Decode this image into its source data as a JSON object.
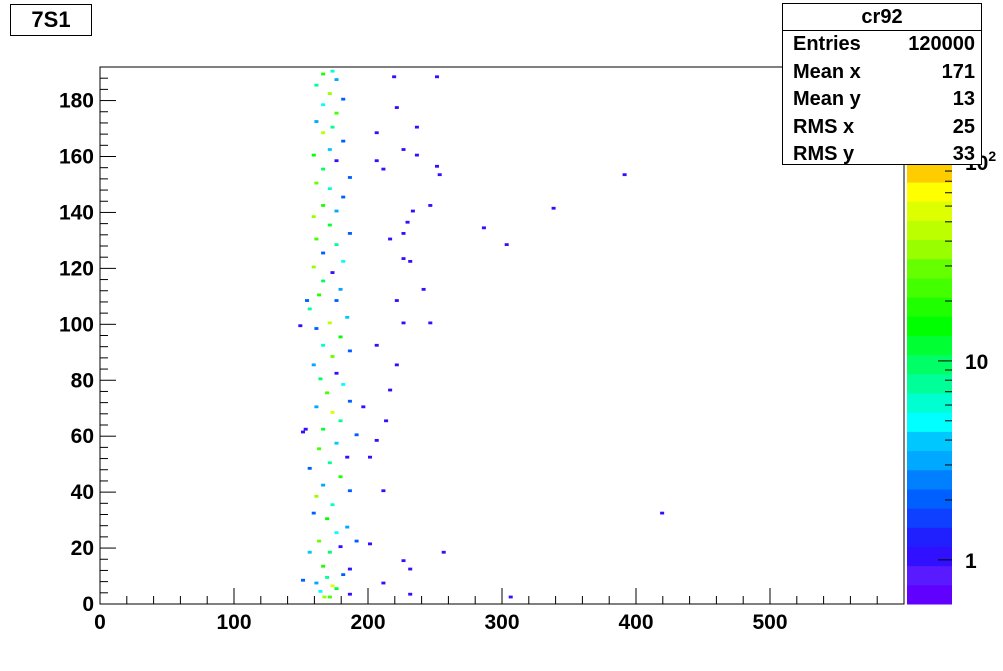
{
  "chart_data": {
    "type": "heatmap",
    "title": "7S1",
    "xlim": [
      0,
      600
    ],
    "ylim": [
      0,
      192
    ],
    "x_ticks": [
      0,
      100,
      200,
      300,
      400,
      500
    ],
    "y_ticks": [
      0,
      20,
      40,
      60,
      80,
      100,
      120,
      140,
      160,
      180
    ],
    "color_scale": "log",
    "color_range": [
      0.6,
      300
    ],
    "colorbar_ticks": [
      "1",
      "10",
      "10^2"
    ],
    "palette": [
      "#6000ff",
      "#5a1aff",
      "#3010ff",
      "#2020ff",
      "#1040ff",
      "#0060ff",
      "#0080ff",
      "#00a8ff",
      "#00c8ff",
      "#00ffff",
      "#00ffd0",
      "#00ff99",
      "#00ff66",
      "#00ff33",
      "#00ff00",
      "#20ff00",
      "#44ff00",
      "#66ff00",
      "#99ff00",
      "#bbff00",
      "#ddff00",
      "#ffff00",
      "#ffcc00",
      "#ffaa00",
      "#ff8000",
      "#ff5000",
      "#ff2800",
      "#ff0000"
    ],
    "bin_size": [
      3,
      1
    ],
    "bins": [
      [
        166,
        2,
        40
      ],
      [
        170,
        2,
        25
      ],
      [
        163,
        4,
        5
      ],
      [
        175,
        5,
        12
      ],
      [
        160,
        7,
        3
      ],
      [
        172,
        6,
        60
      ],
      [
        168,
        9,
        7
      ],
      [
        180,
        10,
        2
      ],
      [
        185,
        12,
        1
      ],
      [
        165,
        13,
        20
      ],
      [
        150,
        8,
        2
      ],
      [
        155,
        18,
        4
      ],
      [
        170,
        18,
        9
      ],
      [
        178,
        20,
        1
      ],
      [
        190,
        22,
        2
      ],
      [
        162,
        22,
        30
      ],
      [
        175,
        25,
        5
      ],
      [
        183,
        27,
        3
      ],
      [
        168,
        30,
        15
      ],
      [
        158,
        32,
        2
      ],
      [
        172,
        35,
        6
      ],
      [
        160,
        38,
        40
      ],
      [
        185,
        40,
        2
      ],
      [
        165,
        42,
        3
      ],
      [
        178,
        45,
        18
      ],
      [
        155,
        48,
        2
      ],
      [
        170,
        50,
        7
      ],
      [
        183,
        52,
        1
      ],
      [
        162,
        55,
        25
      ],
      [
        175,
        57,
        4
      ],
      [
        190,
        60,
        2
      ],
      [
        165,
        62,
        12
      ],
      [
        150,
        61,
        1
      ],
      [
        178,
        65,
        8
      ],
      [
        172,
        68,
        60
      ],
      [
        160,
        70,
        3
      ],
      [
        185,
        72,
        2
      ],
      [
        168,
        75,
        22
      ],
      [
        180,
        78,
        5
      ],
      [
        163,
        80,
        9
      ],
      [
        175,
        82,
        1
      ],
      [
        158,
        85,
        3
      ],
      [
        172,
        88,
        30
      ],
      [
        185,
        90,
        2
      ],
      [
        165,
        92,
        6
      ],
      [
        178,
        95,
        14
      ],
      [
        160,
        98,
        2
      ],
      [
        170,
        100,
        45
      ],
      [
        183,
        102,
        4
      ],
      [
        148,
        99,
        1
      ],
      [
        155,
        105,
        7
      ],
      [
        175,
        108,
        2
      ],
      [
        162,
        110,
        20
      ],
      [
        178,
        112,
        3
      ],
      [
        165,
        115,
        10
      ],
      [
        172,
        118,
        1
      ],
      [
        158,
        120,
        35
      ],
      [
        180,
        122,
        5
      ],
      [
        165,
        125,
        2
      ],
      [
        175,
        128,
        8
      ],
      [
        160,
        130,
        25
      ],
      [
        185,
        132,
        2
      ],
      [
        170,
        135,
        12
      ],
      [
        158,
        138,
        40
      ],
      [
        175,
        140,
        3
      ],
      [
        165,
        142,
        18
      ],
      [
        180,
        145,
        2
      ],
      [
        170,
        148,
        6
      ],
      [
        160,
        150,
        30
      ],
      [
        185,
        152,
        2
      ],
      [
        165,
        155,
        9
      ],
      [
        175,
        158,
        1
      ],
      [
        158,
        160,
        15
      ],
      [
        170,
        162,
        4
      ],
      [
        180,
        165,
        2
      ],
      [
        165,
        168,
        50
      ],
      [
        172,
        170,
        7
      ],
      [
        160,
        172,
        3
      ],
      [
        175,
        175,
        22
      ],
      [
        165,
        178,
        5
      ],
      [
        180,
        180,
        2
      ],
      [
        170,
        182,
        35
      ],
      [
        160,
        185,
        8
      ],
      [
        175,
        187,
        3
      ],
      [
        165,
        189,
        20
      ],
      [
        172,
        190,
        6
      ],
      [
        152,
        62,
        1
      ],
      [
        153,
        108,
        2
      ],
      [
        185,
        3,
        1
      ],
      [
        230,
        3,
        1
      ],
      [
        305,
        2,
        1
      ],
      [
        210,
        7,
        1
      ],
      [
        225,
        15,
        1
      ],
      [
        200,
        21,
        1
      ],
      [
        230,
        12,
        1
      ],
      [
        255,
        18,
        1
      ],
      [
        418,
        32,
        1
      ],
      [
        210,
        40,
        1
      ],
      [
        200,
        52,
        1
      ],
      [
        205,
        58,
        1
      ],
      [
        212,
        65,
        1
      ],
      [
        195,
        70,
        1
      ],
      [
        215,
        76,
        1
      ],
      [
        220,
        85,
        1
      ],
      [
        205,
        92,
        1
      ],
      [
        225,
        100,
        1
      ],
      [
        245,
        100,
        1
      ],
      [
        220,
        108,
        1
      ],
      [
        240,
        112,
        1
      ],
      [
        230,
        122,
        1
      ],
      [
        225,
        132,
        1
      ],
      [
        228,
        136,
        1
      ],
      [
        232,
        140,
        1
      ],
      [
        302,
        128,
        1
      ],
      [
        285,
        134,
        1
      ],
      [
        337,
        141,
        1
      ],
      [
        390,
        153,
        1
      ],
      [
        210,
        155,
        1
      ],
      [
        225,
        162,
        1
      ],
      [
        252,
        153,
        1
      ],
      [
        250,
        156,
        1
      ],
      [
        235,
        160,
        1
      ],
      [
        205,
        168,
        1
      ],
      [
        235,
        170,
        1
      ],
      [
        220,
        177,
        1
      ],
      [
        250,
        188,
        1
      ],
      [
        218,
        188,
        1
      ],
      [
        205,
        158,
        1
      ],
      [
        225,
        123,
        1
      ],
      [
        215,
        130,
        1
      ],
      [
        245,
        142,
        1
      ]
    ]
  },
  "stats": {
    "name": "cr92",
    "rows": [
      {
        "key": "Entries",
        "value": "120000"
      },
      {
        "key": "Mean x",
        "value": "171"
      },
      {
        "key": "Mean y",
        "value": "13"
      },
      {
        "key": "RMS x",
        "value": "25"
      },
      {
        "key": "RMS y",
        "value": "33"
      }
    ]
  }
}
